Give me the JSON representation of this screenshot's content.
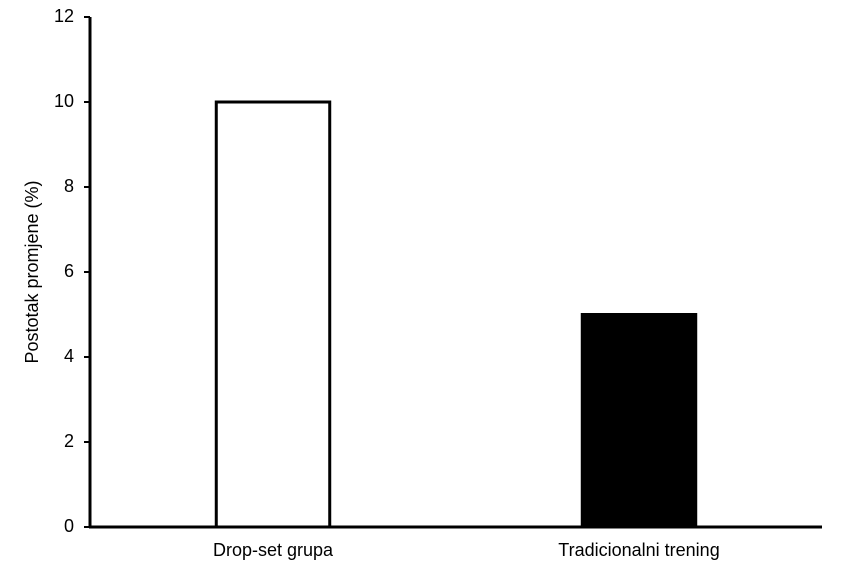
{
  "chart_data": {
    "type": "bar",
    "y_label": "Postotak promjene (%)",
    "categories": [
      "Drop-set grupa",
      "Tradicionalni trening"
    ],
    "values": [
      10,
      5
    ],
    "colors": [
      "#ffffff",
      "#000000"
    ],
    "edge_color": "#000000",
    "ylim": [
      0,
      12
    ],
    "yticks": [
      0,
      2,
      4,
      6,
      8,
      10,
      12
    ],
    "grid": false
  }
}
